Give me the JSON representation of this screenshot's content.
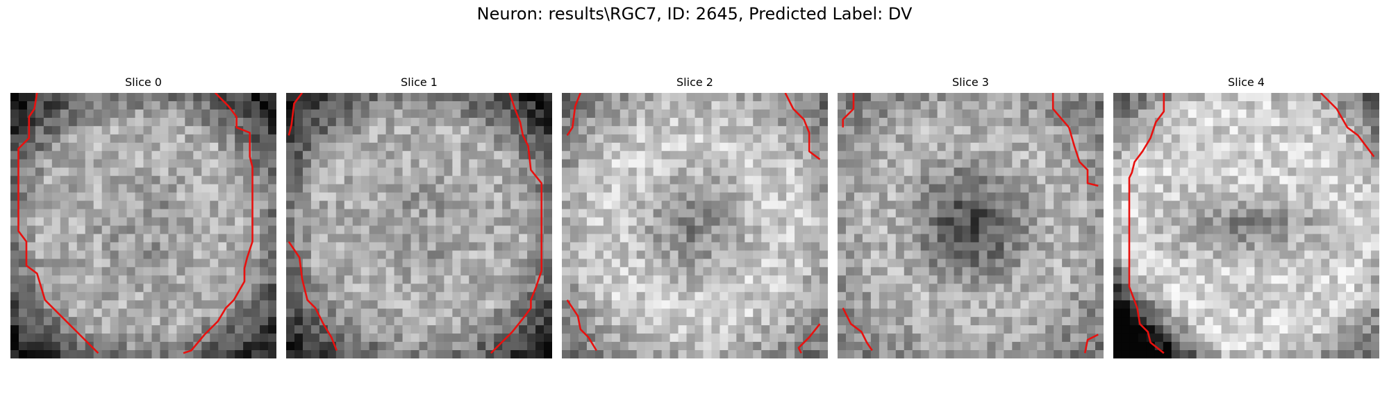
{
  "title": "Neuron: results\\RGC7, ID: 2645, Predicted Label: DV",
  "slices": [
    {
      "label": "Slice 0",
      "pattern": "ring",
      "contours": [
        [
          [
            0.1,
            0.0
          ],
          [
            0.09,
            0.06
          ],
          [
            0.07,
            0.09
          ],
          [
            0.07,
            0.17
          ],
          [
            0.03,
            0.21
          ],
          [
            0.03,
            0.52
          ],
          [
            0.06,
            0.56
          ],
          [
            0.06,
            0.65
          ],
          [
            0.1,
            0.68
          ],
          [
            0.13,
            0.78
          ],
          [
            0.17,
            0.82
          ],
          [
            0.26,
            0.91
          ],
          [
            0.3,
            0.95
          ],
          [
            0.33,
            0.98
          ]
        ],
        [
          [
            0.77,
            0.0
          ],
          [
            0.82,
            0.05
          ],
          [
            0.85,
            0.09
          ],
          [
            0.85,
            0.13
          ],
          [
            0.9,
            0.15
          ],
          [
            0.9,
            0.24
          ],
          [
            0.91,
            0.28
          ],
          [
            0.91,
            0.56
          ],
          [
            0.89,
            0.62
          ],
          [
            0.88,
            0.66
          ],
          [
            0.88,
            0.71
          ],
          [
            0.84,
            0.78
          ],
          [
            0.81,
            0.81
          ],
          [
            0.78,
            0.86
          ],
          [
            0.73,
            0.91
          ],
          [
            0.68,
            0.97
          ],
          [
            0.65,
            0.98
          ]
        ]
      ]
    },
    {
      "label": "Slice 1",
      "pattern": "ring",
      "contours": [
        [
          [
            0.06,
            0.0
          ],
          [
            0.03,
            0.04
          ],
          [
            0.02,
            0.12
          ],
          [
            0.01,
            0.16
          ]
        ],
        [
          [
            0.01,
            0.56
          ],
          [
            0.05,
            0.62
          ],
          [
            0.06,
            0.7
          ],
          [
            0.08,
            0.78
          ],
          [
            0.11,
            0.81
          ],
          [
            0.14,
            0.87
          ],
          [
            0.17,
            0.92
          ],
          [
            0.19,
            0.97
          ]
        ],
        [
          [
            0.84,
            0.0
          ],
          [
            0.86,
            0.06
          ],
          [
            0.88,
            0.11
          ],
          [
            0.89,
            0.16
          ],
          [
            0.91,
            0.2
          ],
          [
            0.92,
            0.29
          ],
          [
            0.96,
            0.34
          ],
          [
            0.96,
            0.67
          ],
          [
            0.94,
            0.73
          ],
          [
            0.92,
            0.78
          ],
          [
            0.92,
            0.81
          ],
          [
            0.89,
            0.85
          ],
          [
            0.85,
            0.9
          ],
          [
            0.82,
            0.93
          ],
          [
            0.78,
            0.97
          ],
          [
            0.77,
            0.98
          ]
        ]
      ]
    },
    {
      "label": "Slice 2",
      "pattern": "bright",
      "contours": [
        [
          [
            0.07,
            0.0
          ],
          [
            0.05,
            0.05
          ],
          [
            0.04,
            0.13
          ],
          [
            0.02,
            0.16
          ]
        ],
        [
          [
            0.02,
            0.78
          ],
          [
            0.06,
            0.84
          ],
          [
            0.07,
            0.89
          ],
          [
            0.1,
            0.92
          ],
          [
            0.13,
            0.97
          ]
        ],
        [
          [
            0.84,
            0.0
          ],
          [
            0.87,
            0.06
          ],
          [
            0.91,
            0.1
          ],
          [
            0.93,
            0.15
          ],
          [
            0.93,
            0.22
          ],
          [
            0.97,
            0.25
          ]
        ],
        [
          [
            0.97,
            0.87
          ],
          [
            0.93,
            0.92
          ],
          [
            0.89,
            0.96
          ],
          [
            0.9,
            0.98
          ]
        ]
      ]
    },
    {
      "label": "Slice 3",
      "pattern": "dark",
      "contours": [
        [
          [
            0.06,
            0.0
          ],
          [
            0.06,
            0.06
          ],
          [
            0.02,
            0.1
          ],
          [
            0.02,
            0.13
          ]
        ],
        [
          [
            0.02,
            0.81
          ],
          [
            0.05,
            0.87
          ],
          [
            0.09,
            0.9
          ],
          [
            0.11,
            0.94
          ],
          [
            0.13,
            0.97
          ]
        ],
        [
          [
            0.81,
            0.0
          ],
          [
            0.81,
            0.06
          ],
          [
            0.87,
            0.13
          ],
          [
            0.89,
            0.2
          ],
          [
            0.91,
            0.26
          ],
          [
            0.94,
            0.29
          ],
          [
            0.94,
            0.34
          ],
          [
            0.98,
            0.35
          ]
        ],
        [
          [
            0.98,
            0.91
          ],
          [
            0.94,
            0.93
          ],
          [
            0.93,
            0.98
          ]
        ]
      ]
    },
    {
      "label": "Slice 4",
      "pattern": "bowtie",
      "contours": [
        [
          [
            0.19,
            0.0
          ],
          [
            0.19,
            0.07
          ],
          [
            0.16,
            0.11
          ],
          [
            0.14,
            0.17
          ],
          [
            0.11,
            0.22
          ],
          [
            0.08,
            0.26
          ],
          [
            0.07,
            0.3
          ],
          [
            0.06,
            0.32
          ],
          [
            0.06,
            0.73
          ],
          [
            0.09,
            0.81
          ],
          [
            0.1,
            0.87
          ],
          [
            0.13,
            0.9
          ],
          [
            0.14,
            0.94
          ],
          [
            0.19,
            0.98
          ]
        ],
        [
          [
            0.78,
            0.0
          ],
          [
            0.84,
            0.06
          ],
          [
            0.88,
            0.13
          ],
          [
            0.92,
            0.16
          ],
          [
            0.98,
            0.24
          ]
        ]
      ]
    }
  ],
  "colors": {
    "contour": "#e8110f"
  }
}
